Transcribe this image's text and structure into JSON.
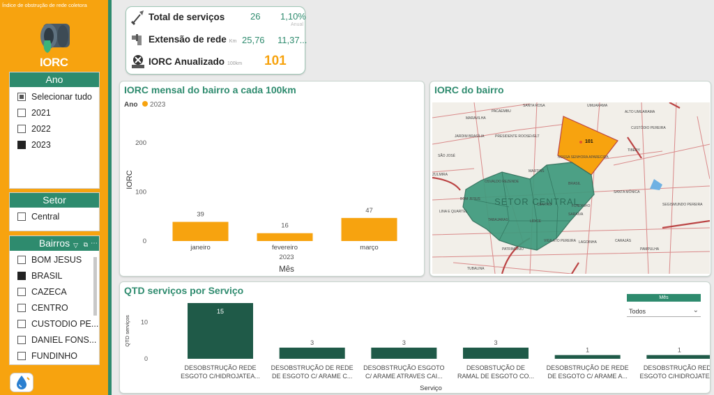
{
  "sidebar": {
    "title": "Índice de obstrução de rede coletora",
    "logo_text": "IORC",
    "ano": {
      "header": "Ano",
      "items": [
        {
          "label": "Selecionar tudo",
          "state": "partial"
        },
        {
          "label": "2021",
          "state": "off"
        },
        {
          "label": "2022",
          "state": "off"
        },
        {
          "label": "2023",
          "state": "on"
        }
      ]
    },
    "setor": {
      "header": "Setor",
      "items": [
        {
          "label": "Central",
          "state": "off"
        }
      ]
    },
    "bairros": {
      "header": "Bairros",
      "items": [
        {
          "label": "BOM JESUS",
          "state": "off"
        },
        {
          "label": "BRASIL",
          "state": "on"
        },
        {
          "label": "CAZECA",
          "state": "off"
        },
        {
          "label": "CENTRO",
          "state": "off"
        },
        {
          "label": "CUSTODIO PE...",
          "state": "off"
        },
        {
          "label": "DANIEL FONS...",
          "state": "off"
        },
        {
          "label": "FUNDINHO",
          "state": "off"
        }
      ]
    }
  },
  "kpi": {
    "total_label": "Total de serviços",
    "total_value": "26",
    "total_pct": "1,10%",
    "total_pct_sub": "Anual",
    "ext_label": "Extensão de rede",
    "ext_unit": "Km",
    "ext_value": "25,76",
    "ext_value2": "11,37...",
    "iorc_label": "IORC Anualizado",
    "iorc_unit": "100km",
    "iorc_value": "101"
  },
  "monthly": {
    "title": "IORC mensal do bairro a cada 100km",
    "legend_title": "Ano",
    "legend_item": "2023",
    "year_label": "2023",
    "xlabel": "Mês",
    "ylabel": "IORC"
  },
  "map": {
    "title": "IORC do bairro",
    "value_label": "101",
    "sector_label": "SETOR CENTRAL",
    "places": [
      "SANTA ROSA",
      "PACAEMBU",
      "UMUARAMA",
      "ALTO UMUARAMA",
      "MARAVILHA",
      "CUSTÓDIO PEREIRA",
      "JARDIM BRASÍLIA",
      "PRESIDENTE ROOSEVELT",
      "TIBERY",
      "SÃO JOSÉ",
      "NOSSA SENHORA APARECIDA",
      "MARTINS",
      "ZULMIRA",
      "OSVALDO REZENDE",
      "BRASIL",
      "SANTA MÔNICA",
      "CENTRO",
      "SARAIVA",
      "SEGISMUNDO PEREIRA",
      "LINA E QUARTEL",
      "TABAJARAS",
      "LÍDICE",
      "VIGILATO PEREIRA",
      "LAGOINHA",
      "CARAJÁS",
      "PATRIMÔNIO",
      "PAMPULHA",
      "TUBALINA",
      "BOM JESUS",
      "FUNDINHO"
    ]
  },
  "service": {
    "title": "QTD serviços por Serviço",
    "xlabel": "Serviço",
    "ylabel": "QTD serviços",
    "filter_label": "Mês",
    "filter_value": "Todos"
  },
  "colors": {
    "accent": "#2e8b6e",
    "orange": "#f7a30f",
    "dark_green": "#1f5a48"
  },
  "chart_data": [
    {
      "type": "bar",
      "categories": [
        "janeiro",
        "fevereiro",
        "março"
      ],
      "values": [
        39,
        16,
        47
      ],
      "title": "IORC mensal do bairro a cada 100km",
      "xlabel": "Mês",
      "ylabel": "IORC",
      "yticks": [
        0,
        100,
        200
      ],
      "ylim": [
        0,
        220
      ],
      "series": [
        {
          "name": "2023",
          "values": [
            39,
            16,
            47
          ]
        }
      ]
    },
    {
      "type": "bar",
      "categories": [
        [
          "DESOBSTRUÇÃO REDE",
          "ESGOTO C/HIDROJATEA..."
        ],
        [
          "DESOBSTRUÇÃO DE REDE",
          "DE ESGOTO C/ ARAME C..."
        ],
        [
          "DESOBSTRUÇÃO ESGOTO",
          "C/ ARAME ATRAVES CAI..."
        ],
        [
          "DESOBSTUÇÃO DE",
          "RAMAL DE ESGOTO CO..."
        ],
        [
          "DESOBSTRUÇÃO DE REDE",
          "DE ESGOTO C/ ARAME A..."
        ],
        [
          "DESOBSTRUÇÃO REDE",
          "ESGOTO C/HIDROJATEA..."
        ]
      ],
      "values": [
        15,
        3,
        3,
        3,
        1,
        1
      ],
      "title": "QTD serviços por Serviço",
      "xlabel": "Serviço",
      "ylabel": "QTD serviços",
      "yticks": [
        0,
        10
      ],
      "ylim": [
        0,
        16
      ]
    }
  ]
}
